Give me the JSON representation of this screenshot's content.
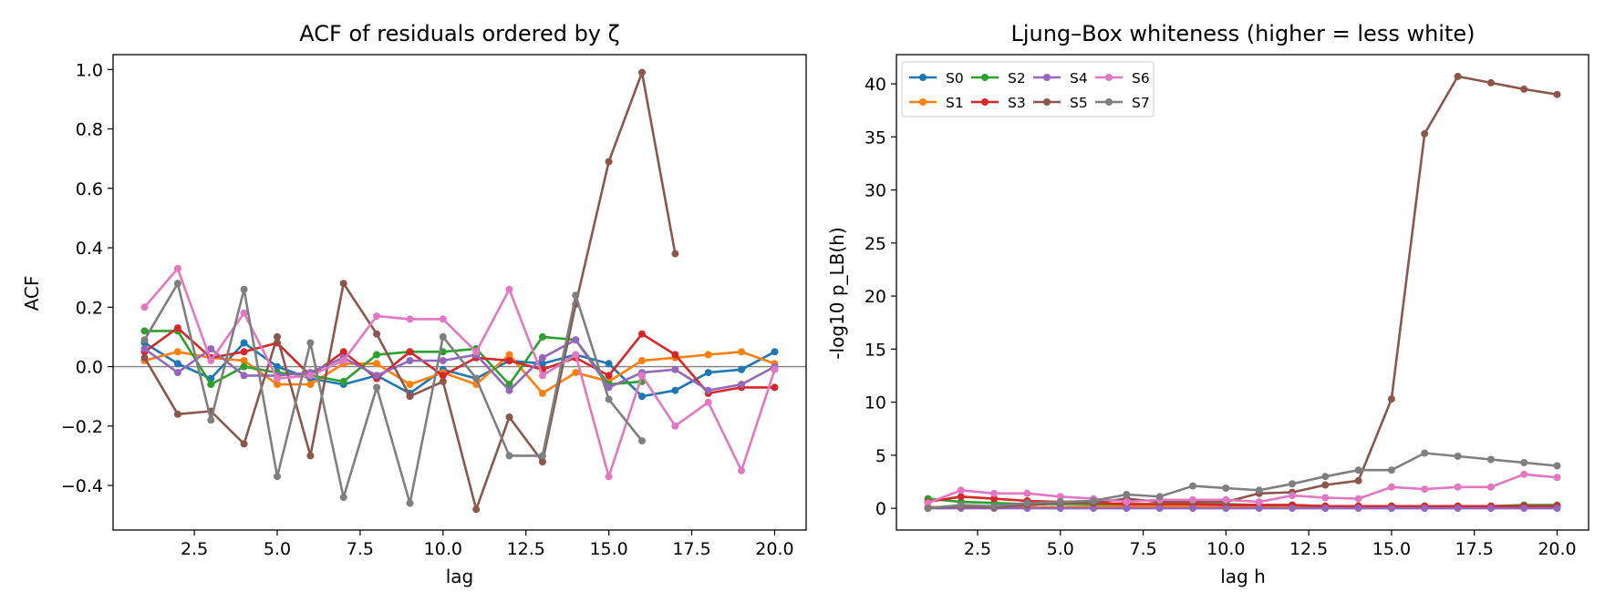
{
  "chart_data": [
    {
      "type": "line",
      "title": "ACF of residuals ordered by ζ",
      "xlabel": "lag",
      "ylabel": "ACF",
      "xlim": [
        0.05,
        20.95
      ],
      "ylim": [
        -0.55,
        1.05
      ],
      "xticks": [
        "2.5",
        "5.0",
        "7.5",
        "10.0",
        "12.5",
        "15.0",
        "17.5",
        "20.0"
      ],
      "yticks": [
        "−0.4",
        "−0.2",
        "0.0",
        "0.2",
        "0.4",
        "0.6",
        "0.8",
        "1.0"
      ],
      "xtick_values": [
        2.5,
        5,
        7.5,
        10,
        12.5,
        15,
        17.5,
        20
      ],
      "ytick_values": [
        -0.4,
        -0.2,
        0,
        0.2,
        0.4,
        0.6,
        0.8,
        1.0
      ],
      "reference_line": 0,
      "grid": false,
      "legend": "none",
      "series": [
        {
          "color": "#1f77b4",
          "x": [
            1,
            2,
            3,
            4,
            5,
            6,
            7,
            8,
            9,
            10,
            11,
            12,
            13,
            14,
            15,
            16,
            17,
            18,
            19,
            20
          ],
          "y": [
            0.08,
            0.01,
            -0.04,
            0.08,
            0.0,
            -0.04,
            -0.06,
            -0.03,
            -0.09,
            -0.01,
            -0.04,
            0.02,
            0.01,
            0.04,
            0.01,
            -0.1,
            -0.08,
            -0.02,
            -0.01,
            0.05
          ]
        },
        {
          "color": "#ff7f0e",
          "x": [
            1,
            2,
            3,
            4,
            5,
            6,
            7,
            8,
            9,
            10,
            11,
            12,
            13,
            14,
            15,
            16,
            17,
            18,
            19,
            20
          ],
          "y": [
            0.02,
            0.05,
            0.03,
            0.02,
            -0.06,
            -0.06,
            0.01,
            0.01,
            -0.06,
            -0.02,
            -0.06,
            0.04,
            -0.09,
            -0.02,
            -0.05,
            0.02,
            0.03,
            0.04,
            0.05,
            0.01
          ]
        },
        {
          "color": "#2ca02c",
          "x": [
            1,
            2,
            3,
            4,
            5,
            6,
            7,
            8,
            9,
            10,
            11,
            12,
            13,
            14,
            15,
            16
          ],
          "y": [
            0.12,
            0.12,
            -0.06,
            0.0,
            -0.02,
            -0.03,
            -0.05,
            0.04,
            0.05,
            0.05,
            0.06,
            -0.06,
            0.1,
            0.09,
            -0.06,
            -0.05
          ]
        },
        {
          "color": "#d62728",
          "x": [
            1,
            2,
            3,
            4,
            5,
            6,
            7,
            8,
            9,
            10,
            11,
            12,
            13,
            14,
            15,
            16,
            17,
            18,
            19,
            20
          ],
          "y": [
            0.05,
            0.13,
            0.03,
            0.05,
            0.08,
            -0.03,
            0.05,
            -0.04,
            0.05,
            -0.03,
            0.03,
            0.02,
            -0.01,
            0.03,
            -0.03,
            0.11,
            0.04,
            -0.09,
            -0.07,
            -0.07
          ]
        },
        {
          "color": "#9467bd",
          "x": [
            1,
            2,
            3,
            4,
            5,
            6,
            7,
            8,
            9,
            10,
            11,
            12,
            13,
            14,
            15,
            16,
            17,
            18,
            19,
            20
          ],
          "y": [
            0.06,
            -0.02,
            0.06,
            -0.03,
            -0.03,
            -0.02,
            0.03,
            -0.03,
            0.02,
            0.02,
            0.04,
            -0.08,
            0.03,
            0.09,
            -0.07,
            -0.02,
            -0.01,
            -0.08,
            -0.06,
            0.0
          ]
        },
        {
          "color": "#8c564b",
          "x": [
            1,
            2,
            3,
            4,
            5,
            6,
            7,
            8,
            9,
            10,
            11,
            12,
            13,
            14,
            15,
            16,
            17
          ],
          "y": [
            0.03,
            -0.16,
            -0.15,
            -0.26,
            0.1,
            -0.3,
            0.28,
            0.11,
            -0.1,
            -0.05,
            -0.48,
            -0.17,
            -0.32,
            0.21,
            0.69,
            0.99,
            0.38
          ]
        },
        {
          "color": "#e377c2",
          "x": [
            1,
            2,
            3,
            4,
            5,
            6,
            7,
            8,
            9,
            10,
            11,
            12,
            13,
            14,
            15,
            16,
            17,
            18,
            19,
            20
          ],
          "y": [
            0.2,
            0.33,
            0.02,
            0.18,
            -0.04,
            -0.03,
            0.02,
            0.17,
            0.16,
            0.16,
            0.05,
            0.26,
            -0.03,
            0.04,
            -0.37,
            -0.03,
            -0.2,
            -0.12,
            -0.35,
            -0.01
          ]
        },
        {
          "color": "#7f7f7f",
          "x": [
            1,
            2,
            3,
            4,
            5,
            6,
            7,
            8,
            9,
            10,
            11,
            12,
            13,
            14,
            15,
            16
          ],
          "y": [
            0.09,
            0.28,
            -0.18,
            0.26,
            -0.37,
            0.08,
            -0.44,
            -0.07,
            -0.46,
            0.1,
            -0.04,
            -0.3,
            -0.3,
            0.24,
            -0.11,
            -0.25
          ]
        }
      ]
    },
    {
      "type": "line",
      "title": "Ljung–Box whiteness (higher = less white)",
      "xlabel": "lag h",
      "ylabel": "-log10 p_LB(h)",
      "xlim": [
        0.05,
        20.95
      ],
      "ylim": [
        -2.05,
        42.75
      ],
      "xticks": [
        "2.5",
        "5.0",
        "7.5",
        "10.0",
        "12.5",
        "15.0",
        "17.5",
        "20.0"
      ],
      "yticks": [
        "0",
        "5",
        "10",
        "15",
        "20",
        "25",
        "30",
        "35",
        "40"
      ],
      "xtick_values": [
        2.5,
        5,
        7.5,
        10,
        12.5,
        15,
        17.5,
        20
      ],
      "ytick_values": [
        0,
        5,
        10,
        15,
        20,
        25,
        30,
        35,
        40
      ],
      "grid": false,
      "legend": "top-left",
      "legend_columns": 4,
      "series": [
        {
          "name": "S0",
          "color": "#1f77b4",
          "x": [
            1,
            2,
            3,
            4,
            5,
            6,
            7,
            8,
            9,
            10,
            11,
            12,
            13,
            14,
            15,
            16,
            17,
            18,
            19,
            20
          ],
          "y": [
            0.1,
            0.1,
            0.1,
            0.1,
            0.1,
            0.1,
            0.1,
            0.1,
            0.1,
            0.1,
            0.1,
            0.1,
            0.1,
            0.1,
            0.1,
            0.1,
            0.1,
            0.1,
            0.1,
            0.1
          ]
        },
        {
          "name": "S1",
          "color": "#ff7f0e",
          "x": [
            1,
            2,
            3,
            4,
            5,
            6,
            7,
            8,
            9,
            10,
            11,
            12,
            13,
            14,
            15,
            16,
            17,
            18,
            19,
            20
          ],
          "y": [
            0.1,
            0.1,
            0.1,
            0.1,
            0.1,
            0.2,
            0.2,
            0.2,
            0.2,
            0.2,
            0.2,
            0.2,
            0.2,
            0.2,
            0.2,
            0.2,
            0.2,
            0.2,
            0.2,
            0.2
          ]
        },
        {
          "name": "S2",
          "color": "#2ca02c",
          "x": [
            1,
            2,
            3,
            4,
            5,
            6,
            7,
            8,
            9,
            10,
            11,
            12,
            13,
            14,
            15,
            16,
            17,
            18,
            19,
            20
          ],
          "y": [
            0.9,
            0.6,
            0.5,
            0.4,
            0.4,
            0.4,
            0.4,
            0.4,
            0.4,
            0.4,
            0.3,
            0.3,
            0.2,
            0.2,
            0.2,
            0.2,
            0.2,
            0.2,
            0.3,
            0.3
          ]
        },
        {
          "name": "S3",
          "color": "#d62728",
          "x": [
            1,
            2,
            3,
            4,
            5,
            6,
            7,
            8,
            9,
            10,
            11,
            12,
            13,
            14,
            15,
            16,
            17,
            18,
            19,
            20
          ],
          "y": [
            0.6,
            1.1,
            0.9,
            0.7,
            0.6,
            0.5,
            0.4,
            0.4,
            0.4,
            0.3,
            0.3,
            0.3,
            0.2,
            0.2,
            0.2,
            0.2,
            0.2,
            0.2,
            0.2,
            0.2
          ]
        },
        {
          "name": "S4",
          "color": "#9467bd",
          "x": [
            1,
            2,
            3,
            4,
            5,
            6,
            7,
            8,
            9,
            10,
            11,
            12,
            13,
            14,
            15,
            16,
            17,
            18,
            19,
            20
          ],
          "y": [
            0.0,
            0.0,
            0.0,
            0.0,
            0.0,
            0.0,
            0.0,
            0.0,
            0.0,
            0.0,
            0.0,
            0.0,
            0.0,
            0.0,
            0.0,
            0.0,
            0.0,
            0.0,
            0.0,
            0.0
          ]
        },
        {
          "name": "S5",
          "color": "#8c564b",
          "x": [
            1,
            2,
            3,
            4,
            5,
            6,
            7,
            8,
            9,
            10,
            11,
            12,
            13,
            14,
            15,
            16,
            17,
            18,
            19,
            20
          ],
          "y": [
            0.0,
            0.2,
            0.1,
            0.3,
            0.5,
            0.5,
            0.9,
            0.6,
            0.6,
            0.6,
            1.4,
            1.5,
            2.2,
            2.6,
            10.3,
            35.3,
            40.7,
            40.1,
            39.5,
            39.0
          ]
        },
        {
          "name": "S6",
          "color": "#e377c2",
          "x": [
            1,
            2,
            3,
            4,
            5,
            6,
            7,
            8,
            9,
            10,
            11,
            12,
            13,
            14,
            15,
            16,
            17,
            18,
            19,
            20
          ],
          "y": [
            0.5,
            1.7,
            1.4,
            1.4,
            1.1,
            0.9,
            0.6,
            0.8,
            0.8,
            0.8,
            0.6,
            1.2,
            1.0,
            0.9,
            2.0,
            1.8,
            2.0,
            2.0,
            3.2,
            2.9
          ]
        },
        {
          "name": "S7",
          "color": "#7f7f7f",
          "x": [
            1,
            2,
            3,
            4,
            5,
            6,
            7,
            8,
            9,
            10,
            11,
            12,
            13,
            14,
            15,
            16,
            17,
            18,
            19,
            20
          ],
          "y": [
            0.0,
            0.3,
            0.2,
            0.5,
            0.6,
            0.7,
            1.3,
            1.1,
            2.1,
            1.9,
            1.7,
            2.3,
            3.0,
            3.6,
            3.6,
            5.2,
            4.9,
            4.6,
            4.3,
            4.0
          ]
        }
      ]
    }
  ]
}
